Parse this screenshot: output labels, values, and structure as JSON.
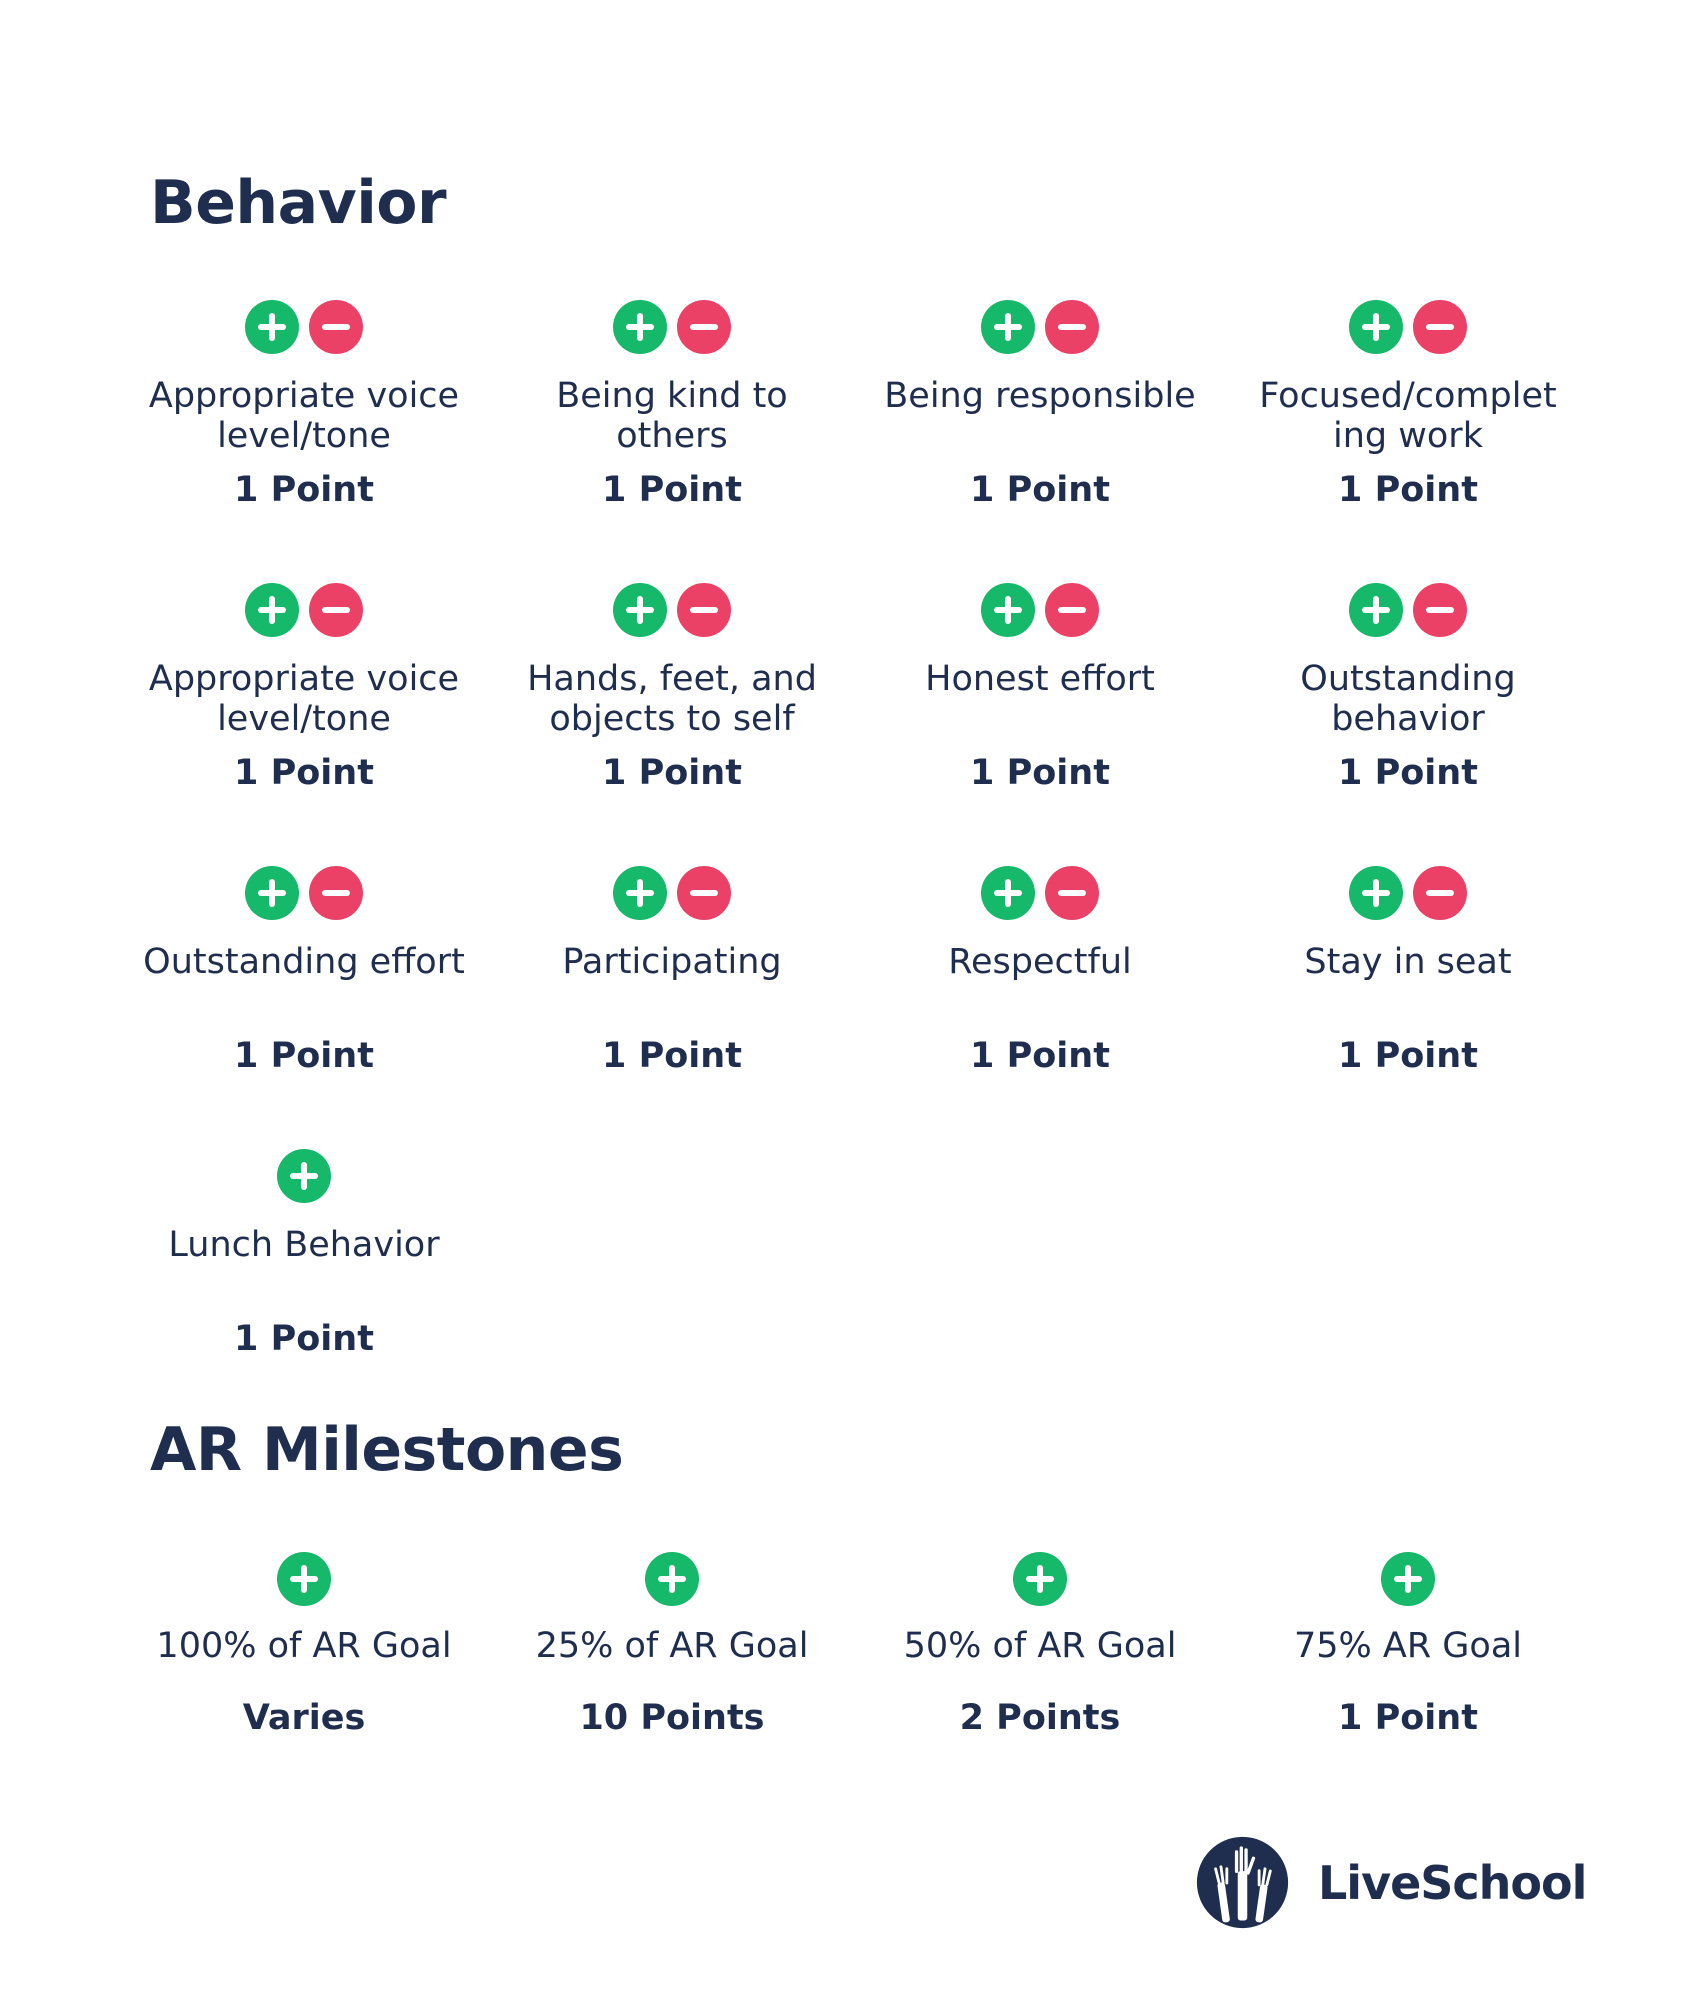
{
  "sections": {
    "behavior": {
      "title": "Behavior",
      "items": [
        {
          "label": "Appropriate voice level/tone",
          "points": "1 Point",
          "plus": true,
          "minus": true
        },
        {
          "label": "Being kind to others",
          "points": "1 Point",
          "plus": true,
          "minus": true
        },
        {
          "label": "Being responsible",
          "points": "1 Point",
          "plus": true,
          "minus": true
        },
        {
          "label": "Focused/complet ing work",
          "points": "1 Point",
          "plus": true,
          "minus": true
        },
        {
          "label": "Appropriate voice level/tone",
          "points": "1 Point",
          "plus": true,
          "minus": true
        },
        {
          "label": "Hands, feet, and objects to self",
          "points": "1 Point",
          "plus": true,
          "minus": true
        },
        {
          "label": "Honest effort",
          "points": "1 Point",
          "plus": true,
          "minus": true
        },
        {
          "label": "Outstanding behavior",
          "points": "1 Point",
          "plus": true,
          "minus": true
        },
        {
          "label": "Outstanding effort",
          "points": "1 Point",
          "plus": true,
          "minus": true
        },
        {
          "label": "Participating",
          "points": "1 Point",
          "plus": true,
          "minus": true
        },
        {
          "label": "Respectful",
          "points": "1 Point",
          "plus": true,
          "minus": true
        },
        {
          "label": "Stay in seat",
          "points": "1 Point",
          "plus": true,
          "minus": true
        },
        {
          "label": "Lunch Behavior",
          "points": "1 Point",
          "plus": true,
          "minus": false
        }
      ]
    },
    "milestones": {
      "title": "AR Milestones",
      "items": [
        {
          "label": "100% of AR Goal",
          "points": "Varies",
          "plus": true,
          "minus": false
        },
        {
          "label": "25% of AR Goal",
          "points": "10 Points",
          "plus": true,
          "minus": false
        },
        {
          "label": "50% of AR Goal",
          "points": "2 Points",
          "plus": true,
          "minus": false
        },
        {
          "label": "75% AR Goal",
          "points": "1 Point",
          "plus": true,
          "minus": false
        }
      ]
    }
  },
  "logo": {
    "text": "LiveSchool",
    "icon": "raised-hands-icon"
  },
  "colors": {
    "text": "#1f2d4e",
    "plus": "#16b869",
    "minus": "#ec4166"
  }
}
